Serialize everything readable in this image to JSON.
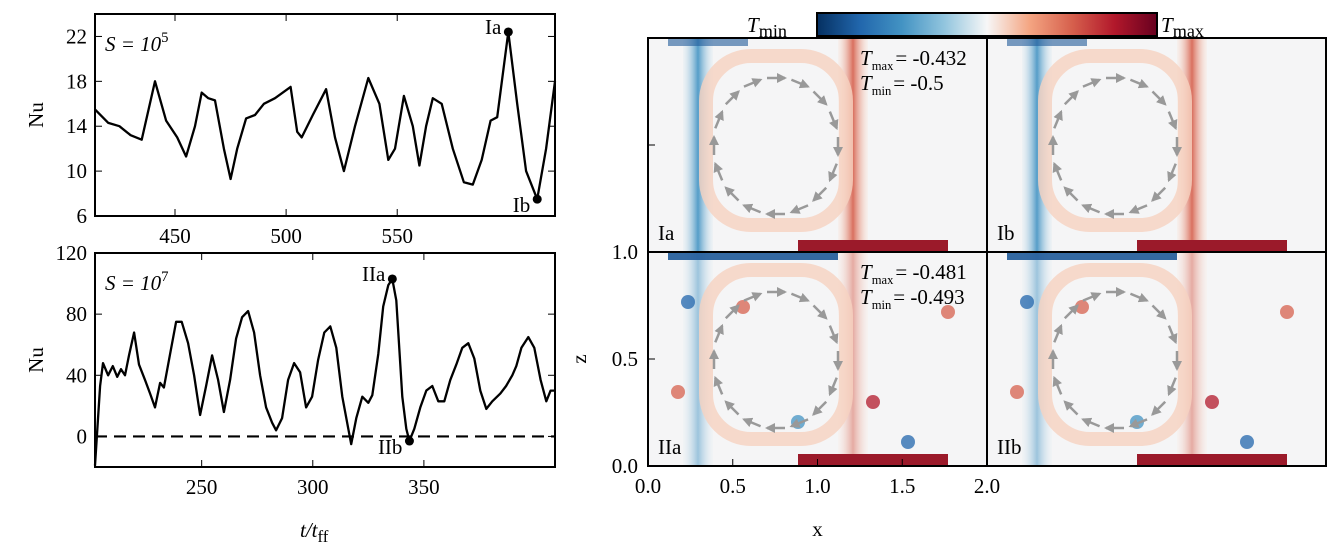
{
  "chart_data": [
    {
      "type": "line",
      "annotation": {
        "main": "S = 10",
        "sup": "5"
      },
      "y_label": "Nu",
      "xlim": [
        414,
        621
      ],
      "ylim": [
        6,
        24
      ],
      "xticks": [
        450,
        500,
        550
      ],
      "yticks": [
        6,
        10,
        14,
        18,
        22
      ],
      "series": [
        {
          "color": "#000000",
          "x": [
            414,
            420,
            425,
            430,
            435,
            441,
            446,
            451,
            455,
            459,
            462,
            465,
            468,
            472,
            475,
            478,
            482,
            486,
            490,
            495,
            502,
            505,
            507,
            512,
            518,
            522,
            526,
            531,
            537,
            542,
            546,
            549,
            553,
            557,
            560,
            563,
            566,
            570,
            575,
            580,
            584,
            588,
            592,
            595,
            600,
            604,
            608,
            613,
            617,
            621
          ],
          "values": [
            15.5,
            14.3,
            14,
            13.2,
            12.8,
            18,
            14.5,
            13,
            11.3,
            14,
            17,
            16.5,
            16.3,
            12,
            9.3,
            12,
            14.7,
            15,
            16,
            16.5,
            17.5,
            13.5,
            13,
            15,
            17.3,
            13,
            10,
            14,
            18.3,
            16,
            11,
            12,
            16.7,
            14,
            10.5,
            14,
            16.5,
            16,
            12,
            9,
            8.8,
            11,
            14.5,
            14.8,
            22.4,
            16,
            10,
            7.5,
            12,
            18
          ]
        }
      ],
      "points": [
        {
          "label": "Ia",
          "x": 600,
          "y": 22.4
        },
        {
          "label": "Ib",
          "x": 613,
          "y": 7.5
        }
      ]
    },
    {
      "type": "line",
      "annotation": {
        "main": "S = 10",
        "sup": "7"
      },
      "y_label": "Nu",
      "x_label": {
        "main": "t/t",
        "sub": "ff"
      },
      "xlim": [
        202,
        409
      ],
      "ylim": [
        -20,
        120
      ],
      "xticks": [
        250,
        300,
        350
      ],
      "yticks": [
        0,
        40,
        80,
        120
      ],
      "hline": 0,
      "series": [
        {
          "color": "#000000",
          "x": [
            202,
            204.3,
            205.6,
            207.9,
            210,
            212,
            213.7,
            215.5,
            217.3,
            219.6,
            221.8,
            224.5,
            226.8,
            229,
            231.3,
            233,
            235.8,
            238.5,
            241,
            243.9,
            246.6,
            249.3,
            252,
            254.7,
            257.4,
            260,
            262.8,
            265.5,
            268.2,
            270.9,
            273.6,
            276.3,
            279,
            281.7,
            283.5,
            286.2,
            288.9,
            291.6,
            294.3,
            297,
            299.7,
            302.4,
            305.2,
            307.9,
            310.6,
            313.3,
            316,
            317.3,
            319.6,
            322.3,
            325,
            326.8,
            329.5,
            331.7,
            334,
            335.8,
            337.6,
            340.3,
            342.1,
            343.5,
            345.7,
            348.4,
            351.1,
            353.8,
            356.5,
            359.2,
            361.9,
            364.6,
            367.3,
            370,
            372.7,
            375.4,
            378.1,
            380.8,
            384.4,
            387,
            389.8,
            391.6,
            393.9,
            397,
            399.7,
            402.5,
            405.1,
            407,
            409
          ],
          "values": [
            -19,
            33,
            48,
            40,
            46,
            39,
            44,
            40,
            53,
            68,
            47,
            37,
            28,
            19,
            35,
            32,
            54,
            75,
            75,
            61,
            40,
            14,
            33,
            53,
            37,
            16,
            37,
            64,
            78,
            82,
            68,
            40,
            19,
            9,
            4,
            12,
            37,
            48,
            42,
            19,
            26,
            50,
            68,
            72,
            58,
            26,
            5,
            -5,
            12,
            26,
            22,
            27,
            54,
            85,
            99,
            103,
            89,
            26,
            5,
            -3,
            5,
            19,
            30,
            33,
            23,
            23,
            37,
            47,
            58,
            61,
            51,
            30,
            18,
            23,
            28,
            33,
            40,
            46,
            58,
            65,
            58,
            37,
            23,
            30,
            30
          ]
        }
      ],
      "points": [
        {
          "label": "IIa",
          "x": 335.8,
          "y": 103
        },
        {
          "label": "IIb",
          "x": 343.5,
          "y": -3
        }
      ]
    },
    {
      "type": "heatmap",
      "x_label": "x",
      "y_label": "z",
      "xlim": [
        0,
        2
      ],
      "ylim": [
        0,
        1
      ],
      "xticks": [
        {
          "value": 0,
          "label": "0.0"
        },
        {
          "value": 0.5,
          "label": "0.5"
        },
        {
          "value": 1,
          "label": "1.0"
        },
        {
          "value": 1.5,
          "label": "1.5"
        },
        {
          "value": 2,
          "label": "2.0"
        }
      ],
      "yticks": [
        {
          "value": 0,
          "label": "0.0"
        },
        {
          "value": 0.5,
          "label": "0.5"
        },
        {
          "value": 1,
          "label": "1.0"
        }
      ],
      "colorbar": {
        "min_label": {
          "main": "T",
          "sub": "min"
        },
        "max_label": {
          "main": "T",
          "sub": "max"
        },
        "colors": [
          "#053061",
          "#2166ac",
          "#4393c3",
          "#92c5de",
          "#f7f7f7",
          "#f4a582",
          "#d6604d",
          "#b2182b",
          "#67001f"
        ]
      },
      "panels": [
        {
          "label": "Ia",
          "tmax": {
            "main": "T",
            "sub": "max",
            "text": "= -0.432"
          },
          "tmin": {
            "main": "T",
            "sub": "min",
            "text": "= -0.5"
          }
        },
        {
          "label": "Ib"
        },
        {
          "label": "IIa",
          "tmax": {
            "main": "T",
            "sub": "max",
            "text": "= -0.481"
          },
          "tmin": {
            "main": "T",
            "sub": "min",
            "text": "= -0.493"
          }
        },
        {
          "label": "IIb"
        }
      ]
    }
  ]
}
